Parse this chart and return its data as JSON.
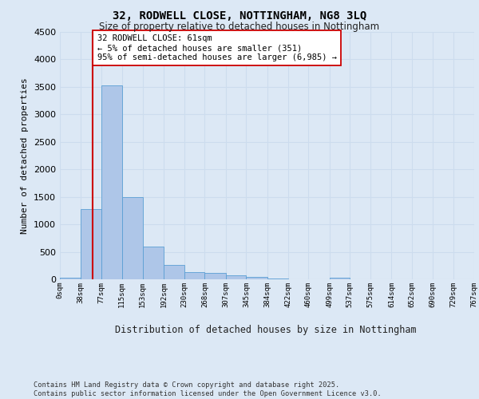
{
  "title_line1": "32, RODWELL CLOSE, NOTTINGHAM, NG8 3LQ",
  "title_line2": "Size of property relative to detached houses in Nottingham",
  "xlabel": "Distribution of detached houses by size in Nottingham",
  "ylabel": "Number of detached properties",
  "property_size": 61,
  "annotation_line1": "32 RODWELL CLOSE: 61sqm",
  "annotation_line2": "← 5% of detached houses are smaller (351)",
  "annotation_line3": "95% of semi-detached houses are larger (6,985) →",
  "bin_edges": [
    0,
    38,
    77,
    115,
    153,
    192,
    230,
    268,
    307,
    345,
    384,
    422,
    460,
    499,
    537,
    575,
    614,
    652,
    690,
    729,
    767
  ],
  "bin_counts": [
    30,
    1280,
    3530,
    1490,
    600,
    260,
    130,
    120,
    70,
    50,
    20,
    0,
    0,
    30,
    0,
    0,
    0,
    0,
    0,
    0
  ],
  "bar_facecolor": "#aec6e8",
  "bar_edgecolor": "#5a9fd4",
  "vline_color": "#cc0000",
  "vline_x": 61,
  "annotation_box_edgecolor": "#cc0000",
  "annotation_box_facecolor": "#ffffff",
  "grid_color": "#ccdcee",
  "background_color": "#dce8f5",
  "axes_background": "#dce8f5",
  "ylim": [
    0,
    4500
  ],
  "yticks": [
    0,
    500,
    1000,
    1500,
    2000,
    2500,
    3000,
    3500,
    4000,
    4500
  ],
  "footer_line1": "Contains HM Land Registry data © Crown copyright and database right 2025.",
  "footer_line2": "Contains public sector information licensed under the Open Government Licence v3.0."
}
